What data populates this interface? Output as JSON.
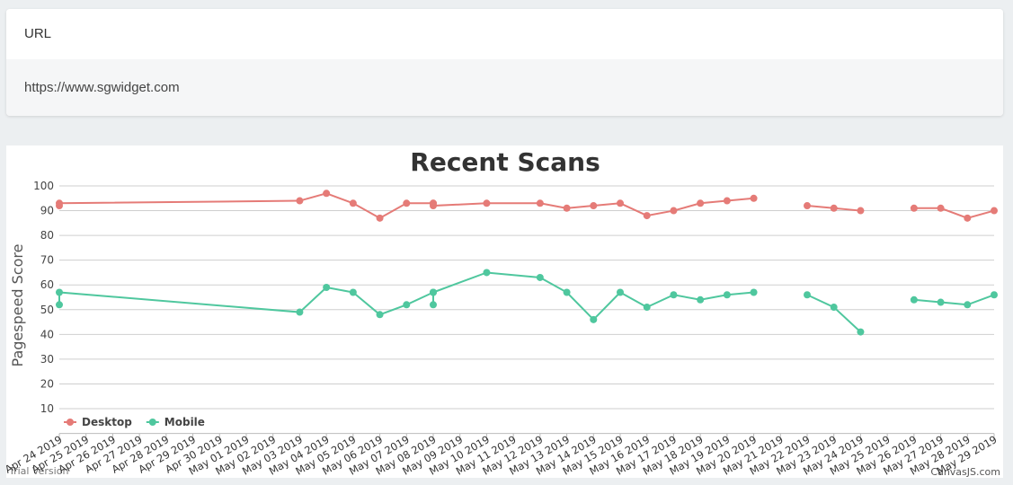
{
  "url_card": {
    "header": "URL",
    "value": "https://www.sgwidget.com"
  },
  "chart_data": {
    "type": "line",
    "title": "Recent Scans",
    "y_label": "Pagespeed Score",
    "x": [
      "2019-04-24",
      "2019-04-24",
      "2019-05-03",
      "2019-05-04",
      "2019-05-05",
      "2019-05-06",
      "2019-05-07",
      "2019-05-08",
      "2019-05-08",
      "2019-05-08",
      "2019-05-10",
      "2019-05-12",
      "2019-05-13",
      "2019-05-14",
      "2019-05-15",
      "2019-05-16",
      "2019-05-17",
      "2019-05-18",
      "2019-05-19",
      "2019-05-20",
      "2019-05-21",
      "2019-05-22",
      "2019-05-23",
      "2019-05-24",
      "2019-05-25",
      "2019-05-26",
      "2019-05-27",
      "2019-05-28",
      "2019-05-29"
    ],
    "series": [
      {
        "name": "Desktop",
        "color": "#e57b77",
        "values": [
          92,
          93,
          94,
          97,
          93,
          87,
          93,
          93,
          93,
          92,
          93,
          93,
          91,
          92,
          93,
          88,
          90,
          93,
          94,
          95,
          null,
          92,
          91,
          90,
          null,
          91,
          91,
          87,
          90
        ]
      },
      {
        "name": "Mobile",
        "color": "#4fc79e",
        "values": [
          52,
          57,
          49,
          59,
          57,
          48,
          52,
          57,
          52,
          57,
          65,
          63,
          57,
          46,
          57,
          51,
          56,
          54,
          56,
          57,
          null,
          56,
          51,
          41,
          null,
          54,
          53,
          52,
          56
        ]
      }
    ],
    "ylim": [
      0,
      100
    ],
    "yticks": [
      10,
      20,
      30,
      40,
      50,
      60,
      70,
      80,
      90,
      100
    ],
    "xlim": [
      "2019-04-24",
      "2019-05-29"
    ],
    "xticks": [
      {
        "value": "2019-04-24",
        "label": "Apr 24 2019"
      },
      {
        "value": "2019-04-25",
        "label": "Apr 25 2019"
      },
      {
        "value": "2019-04-26",
        "label": "Apr 26 2019"
      },
      {
        "value": "2019-04-27",
        "label": "Apr 27 2019"
      },
      {
        "value": "2019-04-28",
        "label": "Apr 28 2019"
      },
      {
        "value": "2019-04-29",
        "label": "Apr 29 2019"
      },
      {
        "value": "2019-04-30",
        "label": "Apr 30 2019"
      },
      {
        "value": "2019-05-01",
        "label": "May 01 2019"
      },
      {
        "value": "2019-05-02",
        "label": "May 02 2019"
      },
      {
        "value": "2019-05-03",
        "label": "May 03 2019"
      },
      {
        "value": "2019-05-04",
        "label": "May 04 2019"
      },
      {
        "value": "2019-05-05",
        "label": "May 05 2019"
      },
      {
        "value": "2019-05-06",
        "label": "May 06 2019"
      },
      {
        "value": "2019-05-07",
        "label": "May 07 2019"
      },
      {
        "value": "2019-05-08",
        "label": "May 08 2019"
      },
      {
        "value": "2019-05-09",
        "label": "May 09 2019"
      },
      {
        "value": "2019-05-10",
        "label": "May 10 2019"
      },
      {
        "value": "2019-05-11",
        "label": "May 11 2019"
      },
      {
        "value": "2019-05-12",
        "label": "May 12 2019"
      },
      {
        "value": "2019-05-13",
        "label": "May 13 2019"
      },
      {
        "value": "2019-05-14",
        "label": "May 14 2019"
      },
      {
        "value": "2019-05-15",
        "label": "May 15 2019"
      },
      {
        "value": "2019-05-16",
        "label": "May 16 2019"
      },
      {
        "value": "2019-05-17",
        "label": "May 17 2019"
      },
      {
        "value": "2019-05-18",
        "label": "May 18 2019"
      },
      {
        "value": "2019-05-19",
        "label": "May 19 2019"
      },
      {
        "value": "2019-05-20",
        "label": "May 20 2019"
      },
      {
        "value": "2019-05-21",
        "label": "May 21 2019"
      },
      {
        "value": "2019-05-22",
        "label": "May 22 2019"
      },
      {
        "value": "2019-05-23",
        "label": "May 23 2019"
      },
      {
        "value": "2019-05-24",
        "label": "May 24 2019"
      },
      {
        "value": "2019-05-25",
        "label": "May 25 2019"
      },
      {
        "value": "2019-05-26",
        "label": "May 26 2019"
      },
      {
        "value": "2019-05-27",
        "label": "May 27 2019"
      },
      {
        "value": "2019-05-28",
        "label": "May 28 2019"
      },
      {
        "value": "2019-05-29",
        "label": "May 29 2019"
      }
    ],
    "grid": true,
    "legend": "bottom-left",
    "watermark": "Trial Version",
    "credit": "CanvasJS.com"
  }
}
